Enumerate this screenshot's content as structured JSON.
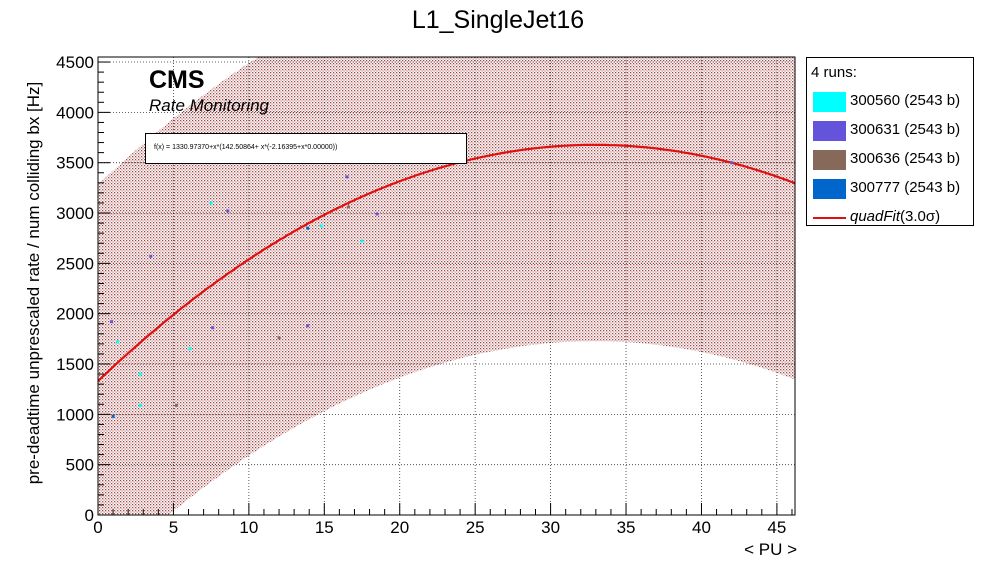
{
  "chart_data": {
    "type": "scatter",
    "title": "L1_SingleJet16",
    "xlabel": "< PU >",
    "ylabel": "pre-deadtime unprescaled rate / num colliding bx [Hz]",
    "xlim": [
      0,
      46.2
    ],
    "ylim": [
      0,
      4550
    ],
    "xticks": [
      0,
      5,
      10,
      15,
      20,
      25,
      30,
      35,
      40,
      45
    ],
    "yticks": [
      0,
      500,
      1000,
      1500,
      2000,
      2500,
      3000,
      3500,
      4000,
      4500
    ],
    "grid": true,
    "legend_header": "4 runs:",
    "legend_position": "outside-right",
    "series": [
      {
        "name": "300560 (2543 b)",
        "color": "#00ffff",
        "points": [
          [
            1.3,
            1720
          ],
          [
            2.8,
            1400
          ],
          [
            2.8,
            1090
          ],
          [
            6.1,
            1650
          ],
          [
            7.5,
            3100
          ],
          [
            14.8,
            2870
          ],
          [
            17.5,
            2720
          ]
        ]
      },
      {
        "name": "300631 (2543 b)",
        "color": "#6454dc",
        "points": [
          [
            0.9,
            1920
          ],
          [
            3.5,
            2570
          ],
          [
            7.6,
            1860
          ],
          [
            8.6,
            3020
          ],
          [
            13.9,
            1880
          ],
          [
            16.5,
            3360
          ],
          [
            18.5,
            2990
          ],
          [
            42.0,
            3500
          ]
        ]
      },
      {
        "name": "300636 (2543 b)",
        "color": "#86695a",
        "points": [
          [
            5.2,
            1090
          ],
          [
            12.0,
            1760
          ],
          [
            16.6,
            3060
          ]
        ]
      },
      {
        "name": "300777 (2543 b)",
        "color": "#0066cc",
        "points": [
          [
            1.0,
            980
          ],
          [
            13.9,
            2850
          ]
        ]
      }
    ],
    "fit": {
      "name": "quadFit",
      "label_suffix": "(3.0σ)",
      "color": "#e01010",
      "formula": "f(x) = 1330.97370+x*(142.50864+ x*(-2.16395+x*0.00000))",
      "coefficients": [
        1330.9737,
        142.50864,
        -2.16395
      ],
      "band_sigma": 3.0,
      "band_halfwidth": 1950
    },
    "annotations": {
      "experiment": "CMS",
      "subtitle": "Rate Monitoring"
    }
  }
}
